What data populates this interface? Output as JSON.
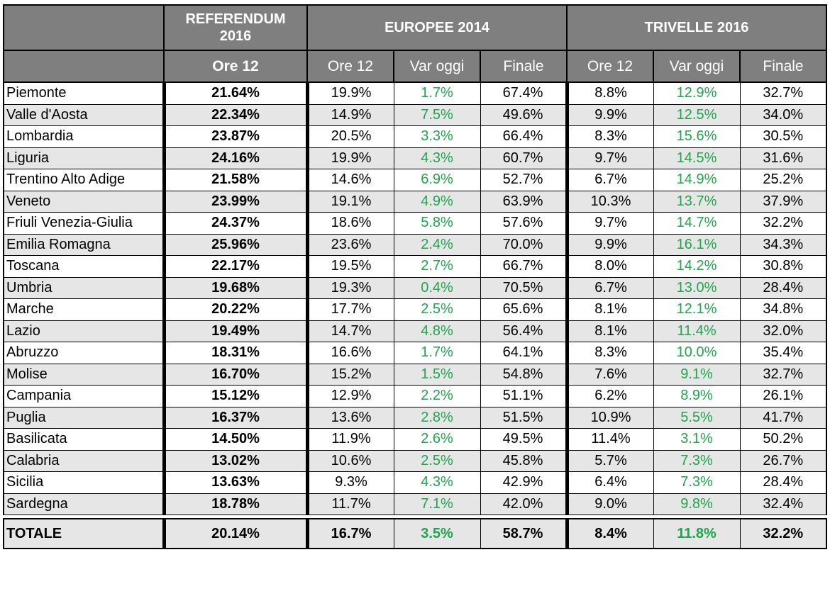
{
  "header": {
    "group_ref": "REFERENDUM\n2016",
    "group_eu": "EUROPEE 2014",
    "group_tr": "TRIVELLE 2016",
    "ref_ore12": "Ore 12",
    "eu_ore12": "Ore 12",
    "eu_var": "Var oggi",
    "eu_finale": "Finale",
    "tr_ore12": "Ore 12",
    "tr_var": "Var oggi",
    "tr_finale": "Finale"
  },
  "rows": [
    {
      "region": "Piemonte",
      "ref": "21.64%",
      "eu_ore12": "19.9%",
      "eu_var": "1.7%",
      "eu_finale": "67.4%",
      "tr_ore12": "8.8%",
      "tr_var": "12.9%",
      "tr_finale": "32.7%"
    },
    {
      "region": "Valle d'Aosta",
      "ref": "22.34%",
      "eu_ore12": "14.9%",
      "eu_var": "7.5%",
      "eu_finale": "49.6%",
      "tr_ore12": "9.9%",
      "tr_var": "12.5%",
      "tr_finale": "34.0%"
    },
    {
      "region": "Lombardia",
      "ref": "23.87%",
      "eu_ore12": "20.5%",
      "eu_var": "3.3%",
      "eu_finale": "66.4%",
      "tr_ore12": "8.3%",
      "tr_var": "15.6%",
      "tr_finale": "30.5%"
    },
    {
      "region": "Liguria",
      "ref": "24.16%",
      "eu_ore12": "19.9%",
      "eu_var": "4.3%",
      "eu_finale": "60.7%",
      "tr_ore12": "9.7%",
      "tr_var": "14.5%",
      "tr_finale": "31.6%"
    },
    {
      "region": "Trentino Alto Adige",
      "ref": "21.58%",
      "eu_ore12": "14.6%",
      "eu_var": "6.9%",
      "eu_finale": "52.7%",
      "tr_ore12": "6.7%",
      "tr_var": "14.9%",
      "tr_finale": "25.2%"
    },
    {
      "region": "Veneto",
      "ref": "23.99%",
      "eu_ore12": "19.1%",
      "eu_var": "4.9%",
      "eu_finale": "63.9%",
      "tr_ore12": "10.3%",
      "tr_var": "13.7%",
      "tr_finale": "37.9%"
    },
    {
      "region": "Friuli Venezia-Giulia",
      "ref": "24.37%",
      "eu_ore12": "18.6%",
      "eu_var": "5.8%",
      "eu_finale": "57.6%",
      "tr_ore12": "9.7%",
      "tr_var": "14.7%",
      "tr_finale": "32.2%"
    },
    {
      "region": "Emilia Romagna",
      "ref": "25.96%",
      "eu_ore12": "23.6%",
      "eu_var": "2.4%",
      "eu_finale": "70.0%",
      "tr_ore12": "9.9%",
      "tr_var": "16.1%",
      "tr_finale": "34.3%"
    },
    {
      "region": "Toscana",
      "ref": "22.17%",
      "eu_ore12": "19.5%",
      "eu_var": "2.7%",
      "eu_finale": "66.7%",
      "tr_ore12": "8.0%",
      "tr_var": "14.2%",
      "tr_finale": "30.8%"
    },
    {
      "region": "Umbria",
      "ref": "19.68%",
      "eu_ore12": "19.3%",
      "eu_var": "0.4%",
      "eu_finale": "70.5%",
      "tr_ore12": "6.7%",
      "tr_var": "13.0%",
      "tr_finale": "28.4%"
    },
    {
      "region": "Marche",
      "ref": "20.22%",
      "eu_ore12": "17.7%",
      "eu_var": "2.5%",
      "eu_finale": "65.6%",
      "tr_ore12": "8.1%",
      "tr_var": "12.1%",
      "tr_finale": "34.8%"
    },
    {
      "region": "Lazio",
      "ref": "19.49%",
      "eu_ore12": "14.7%",
      "eu_var": "4.8%",
      "eu_finale": "56.4%",
      "tr_ore12": "8.1%",
      "tr_var": "11.4%",
      "tr_finale": "32.0%"
    },
    {
      "region": "Abruzzo",
      "ref": "18.31%",
      "eu_ore12": "16.6%",
      "eu_var": "1.7%",
      "eu_finale": "64.1%",
      "tr_ore12": "8.3%",
      "tr_var": "10.0%",
      "tr_finale": "35.4%"
    },
    {
      "region": "Molise",
      "ref": "16.70%",
      "eu_ore12": "15.2%",
      "eu_var": "1.5%",
      "eu_finale": "54.8%",
      "tr_ore12": "7.6%",
      "tr_var": "9.1%",
      "tr_finale": "32.7%"
    },
    {
      "region": "Campania",
      "ref": "15.12%",
      "eu_ore12": "12.9%",
      "eu_var": "2.2%",
      "eu_finale": "51.1%",
      "tr_ore12": "6.2%",
      "tr_var": "8.9%",
      "tr_finale": "26.1%"
    },
    {
      "region": "Puglia",
      "ref": "16.37%",
      "eu_ore12": "13.6%",
      "eu_var": "2.8%",
      "eu_finale": "51.5%",
      "tr_ore12": "10.9%",
      "tr_var": "5.5%",
      "tr_finale": "41.7%"
    },
    {
      "region": "Basilicata",
      "ref": "14.50%",
      "eu_ore12": "11.9%",
      "eu_var": "2.6%",
      "eu_finale": "49.5%",
      "tr_ore12": "11.4%",
      "tr_var": "3.1%",
      "tr_finale": "50.2%"
    },
    {
      "region": "Calabria",
      "ref": "13.02%",
      "eu_ore12": "10.6%",
      "eu_var": "2.5%",
      "eu_finale": "45.8%",
      "tr_ore12": "5.7%",
      "tr_var": "7.3%",
      "tr_finale": "26.7%"
    },
    {
      "region": "Sicilia",
      "ref": "13.63%",
      "eu_ore12": "9.3%",
      "eu_var": "4.3%",
      "eu_finale": "42.9%",
      "tr_ore12": "6.4%",
      "tr_var": "7.3%",
      "tr_finale": "28.4%"
    },
    {
      "region": "Sardegna",
      "ref": "18.78%",
      "eu_ore12": "11.7%",
      "eu_var": "7.1%",
      "eu_finale": "42.0%",
      "tr_ore12": "9.0%",
      "tr_var": "9.8%",
      "tr_finale": "32.4%"
    }
  ],
  "total": {
    "region": "TOTALE",
    "ref": "20.14%",
    "eu_ore12": "16.7%",
    "eu_var": "3.5%",
    "eu_finale": "58.7%",
    "tr_ore12": "8.4%",
    "tr_var": "11.8%",
    "tr_finale": "32.2%"
  },
  "colors": {
    "header_bg": "#7f7f7f",
    "alt_row_bg": "#e6e6e6",
    "positive_var": "#1ea64a"
  }
}
